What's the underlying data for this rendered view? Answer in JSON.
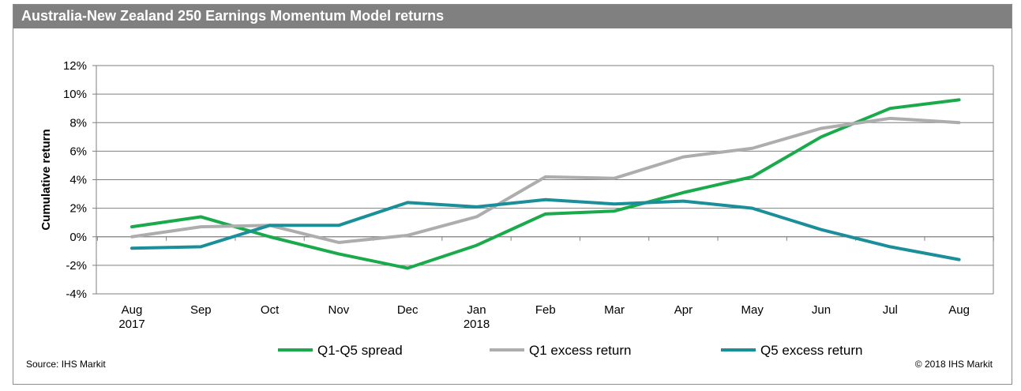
{
  "header": {
    "title": "Australia-New Zealand 250 Earnings Momentum Model returns"
  },
  "footer": {
    "source": "Source: IHS Markit",
    "copyright": "© 2018 IHS Markit"
  },
  "chart_data": {
    "type": "line",
    "title": "Australia-New Zealand 250 Earnings Momentum Model returns",
    "ylabel": "Cumulative return",
    "xlabel": "",
    "categories": [
      "Aug\n2017",
      "Sep",
      "Oct",
      "Nov",
      "Dec",
      "Jan\n2018",
      "Feb",
      "Mar",
      "Apr",
      "May",
      "Jun",
      "Jul",
      "Aug"
    ],
    "y_ticks": [
      "12%",
      "10%",
      "8%",
      "6%",
      "4%",
      "2%",
      "0%",
      "-2%",
      "-4%"
    ],
    "ylim": [
      -4,
      12
    ],
    "y_tick_values": [
      12,
      10,
      8,
      6,
      4,
      2,
      0,
      -2,
      -4
    ],
    "grid": true,
    "legend_position": "bottom",
    "series": [
      {
        "name": "Q1-Q5 spread",
        "color": "#1aaa4b",
        "values": [
          0.7,
          1.4,
          0.0,
          -1.2,
          -2.2,
          -0.6,
          1.6,
          1.8,
          3.1,
          4.2,
          7.0,
          9.0,
          9.6
        ]
      },
      {
        "name": "Q1 excess return",
        "color": "#adadad",
        "values": [
          0.0,
          0.7,
          0.8,
          -0.4,
          0.1,
          1.4,
          4.2,
          4.1,
          5.6,
          6.2,
          7.6,
          8.3,
          8.0
        ]
      },
      {
        "name": "Q5 excess return",
        "color": "#1a8f9a",
        "values": [
          -0.8,
          -0.7,
          0.8,
          0.8,
          2.4,
          2.1,
          2.6,
          2.3,
          2.5,
          2.0,
          0.5,
          -0.7,
          -1.6
        ]
      }
    ]
  }
}
